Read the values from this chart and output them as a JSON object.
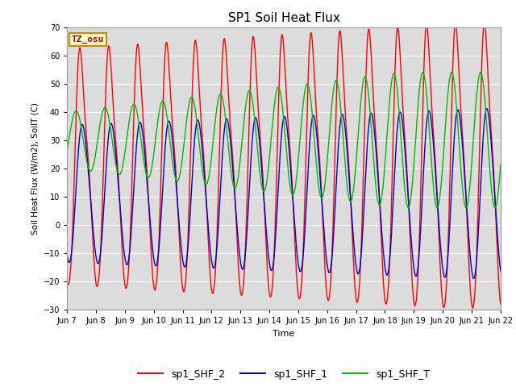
{
  "title": "SP1 Soil Heat Flux",
  "xlabel": "Time",
  "ylabel": "Soil Heat Flux (W/m2), SoilT (C)",
  "ylim": [
    -30,
    70
  ],
  "yticks": [
    -30,
    -20,
    -10,
    0,
    10,
    20,
    30,
    40,
    50,
    60,
    70
  ],
  "xtick_labels": [
    "Jun 7",
    "Jun 8",
    "Jun 9",
    "Jun 10",
    "Jun 11",
    "Jun 12",
    "Jun 13",
    "Jun 14",
    "Jun 15",
    "Jun 16",
    "Jun 17",
    "Jun 18",
    "Jun 19",
    "Jun 20",
    "Jun 21",
    "Jun 22"
  ],
  "bg_color": "#dcdcdc",
  "line_colors": {
    "sp1_SHF_2": "#ff0000",
    "sp1_SHF_1": "#0000cc",
    "sp1_SHF_T": "#00bb00"
  },
  "legend_labels": [
    "sp1_SHF_2",
    "sp1_SHF_1",
    "sp1_SHF_T"
  ],
  "tz_label": "TZ_osu",
  "tz_bg": "#ffffcc",
  "tz_border": "#cc8800",
  "figsize": [
    6.4,
    4.8
  ],
  "dpi": 100
}
